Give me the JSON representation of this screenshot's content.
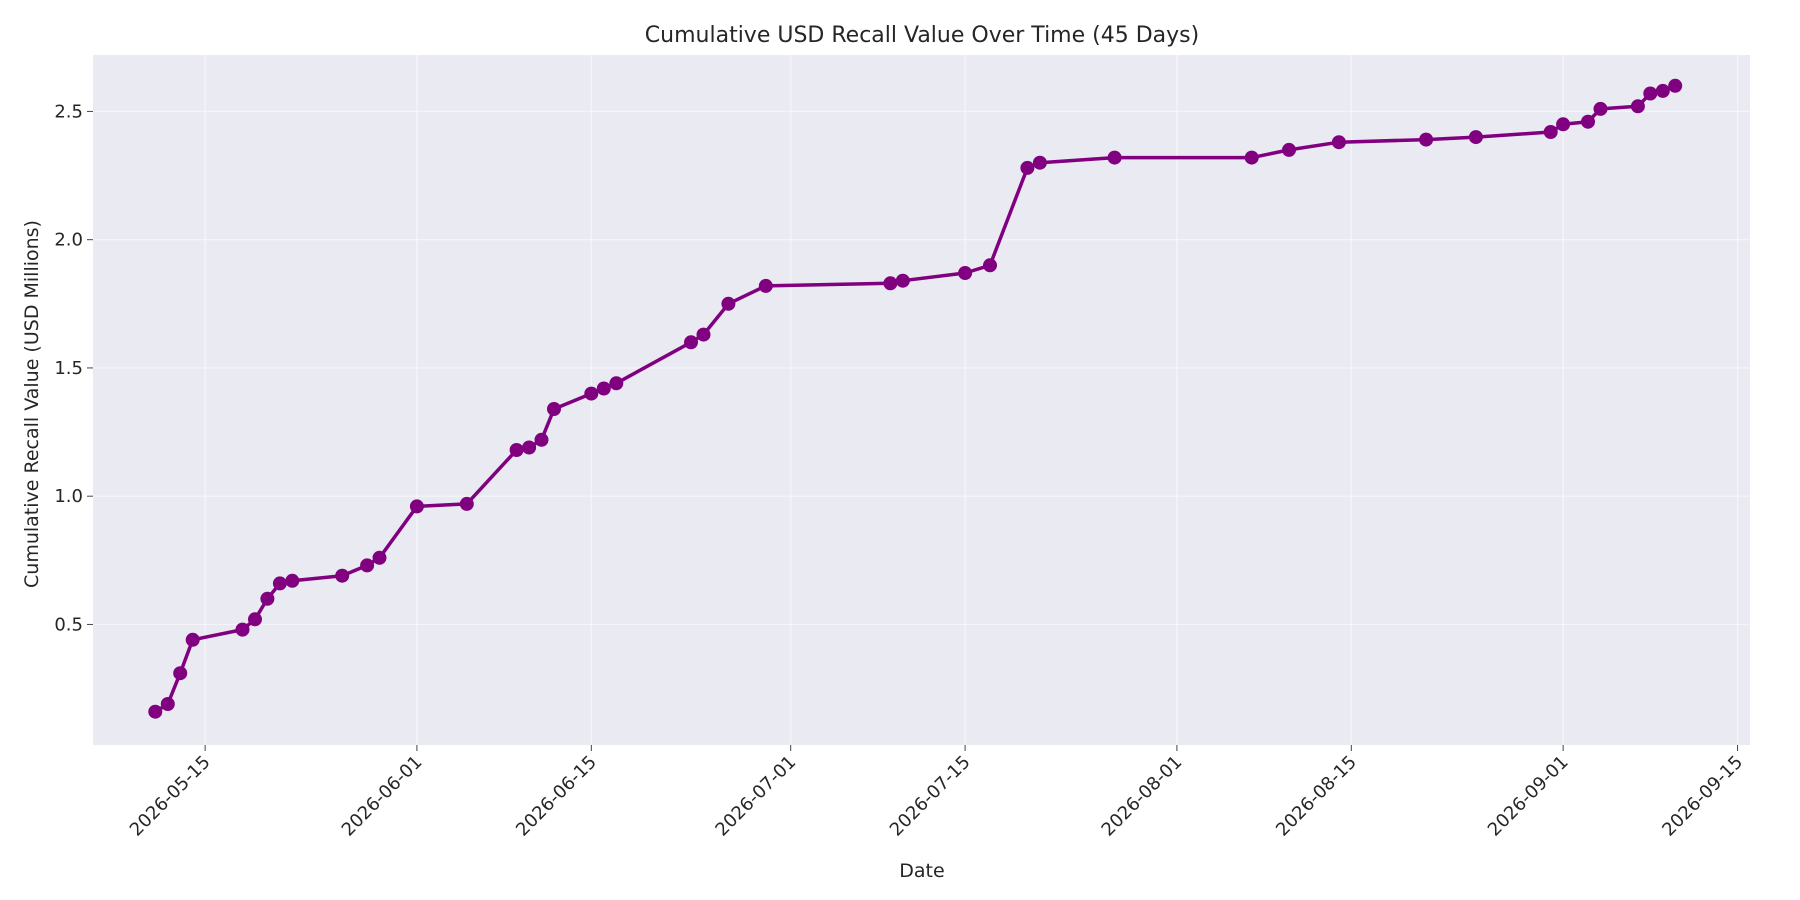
{
  "chart_data": {
    "type": "line",
    "title": "Cumulative USD Recall Value Over Time (45 Days)",
    "xlabel": "Date",
    "ylabel": "Cumulative Recall Value (USD Millions)",
    "xlim": [
      "2026-05-06",
      "2026-09-16"
    ],
    "ylim": [
      0.03,
      2.72
    ],
    "x_ticks": [
      "2026-05-15",
      "2026-06-01",
      "2026-06-15",
      "2026-07-01",
      "2026-07-15",
      "2026-08-01",
      "2026-08-15",
      "2026-09-01",
      "2026-09-15"
    ],
    "y_ticks": [
      0.5,
      1.0,
      1.5,
      2.0,
      2.5
    ],
    "y_tick_labels": [
      "0.5",
      "1.0",
      "1.5",
      "2.0",
      "2.5"
    ],
    "grid": true,
    "colors": {
      "line": "#800080",
      "marker": "#800080",
      "plot_bg": "#eaeaf2",
      "grid": "#ffffff"
    },
    "series": [
      {
        "x": [
          "2026-05-11",
          "2026-05-12",
          "2026-05-13",
          "2026-05-14",
          "2026-05-18",
          "2026-05-19",
          "2026-05-20",
          "2026-05-21",
          "2026-05-22",
          "2026-05-26",
          "2026-05-28",
          "2026-05-29",
          "2026-06-01",
          "2026-06-05",
          "2026-06-09",
          "2026-06-10",
          "2026-06-11",
          "2026-06-12",
          "2026-06-15",
          "2026-06-16",
          "2026-06-17",
          "2026-06-23",
          "2026-06-24",
          "2026-06-26",
          "2026-06-29",
          "2026-07-09",
          "2026-07-10",
          "2026-07-15",
          "2026-07-17",
          "2026-07-20",
          "2026-07-21",
          "2026-07-27",
          "2026-08-07",
          "2026-08-10",
          "2026-08-14",
          "2026-08-21",
          "2026-08-25",
          "2026-08-31",
          "2026-09-01",
          "2026-09-03",
          "2026-09-04",
          "2026-09-07",
          "2026-09-08",
          "2026-09-09",
          "2026-09-10"
        ],
        "values": [
          0.16,
          0.19,
          0.31,
          0.44,
          0.48,
          0.52,
          0.6,
          0.66,
          0.67,
          0.69,
          0.73,
          0.76,
          0.96,
          0.97,
          1.18,
          1.19,
          1.22,
          1.34,
          1.4,
          1.42,
          1.44,
          1.6,
          1.63,
          1.75,
          1.82,
          1.83,
          1.84,
          1.87,
          1.9,
          2.28,
          2.3,
          2.32,
          2.32,
          2.35,
          2.38,
          2.39,
          2.4,
          2.42,
          2.45,
          2.46,
          2.51,
          2.52,
          2.57,
          2.58,
          2.6
        ]
      }
    ]
  }
}
